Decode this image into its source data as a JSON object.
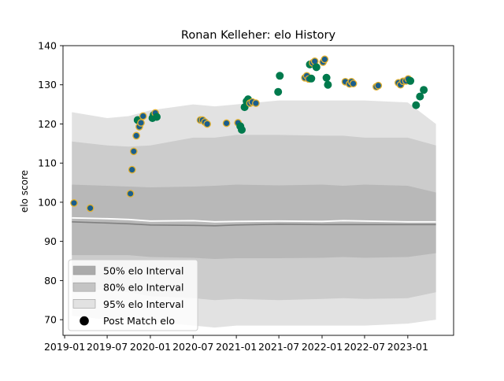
{
  "chart_data": {
    "type": "scatter",
    "title": "Ronan Kelleher: elo History",
    "xlabel": "",
    "ylabel": "elo score",
    "xlim": [
      "2018-12-25",
      "2023-07-15"
    ],
    "ylim": [
      66,
      140
    ],
    "x_ticks": [
      {
        "date": "2019-01-01",
        "label": "2019-01"
      },
      {
        "date": "2019-07-01",
        "label": "2019-07"
      },
      {
        "date": "2020-01-01",
        "label": "2020-01"
      },
      {
        "date": "2020-07-01",
        "label": "2020-07"
      },
      {
        "date": "2021-01-01",
        "label": "2021-01"
      },
      {
        "date": "2021-07-01",
        "label": "2021-07"
      },
      {
        "date": "2022-01-01",
        "label": "2022-01"
      },
      {
        "date": "2022-07-01",
        "label": "2022-07"
      },
      {
        "date": "2023-01-01",
        "label": "2023-01"
      }
    ],
    "y_ticks": [
      70,
      80,
      90,
      100,
      110,
      120,
      130,
      140
    ],
    "legend_position": "lower-left",
    "legend": [
      {
        "label": "50% elo Interval",
        "kind": "band",
        "color": "#aaaaaa"
      },
      {
        "label": "80% elo Interval",
        "kind": "band",
        "color": "#c4c4c4"
      },
      {
        "label": "95% elo Interval",
        "kind": "band",
        "color": "#e2e2e2"
      },
      {
        "label": "Post Match elo",
        "kind": "marker",
        "color": "#000000"
      }
    ],
    "colors": {
      "band95": "#e2e2e2",
      "band80": "#cccccc",
      "band50": "#b8b8b8",
      "mean_line": "#ffffff",
      "median_line": "#808080",
      "point_green": "#007a4d",
      "point_blue": "#1a5e8c",
      "point_edge_gold": "#e0b030"
    },
    "intervals": {
      "dates": [
        "2019-02-01",
        "2019-07-01",
        "2019-10-01",
        "2020-01-01",
        "2020-07-01",
        "2020-10-01",
        "2021-01-01",
        "2021-07-01",
        "2022-01-01",
        "2022-04-01",
        "2022-07-01",
        "2023-01-01",
        "2023-05-01"
      ],
      "mean": [
        96.0,
        95.8,
        95.6,
        95.2,
        95.3,
        95.0,
        95.1,
        95.2,
        95.1,
        95.3,
        95.2,
        95.0,
        95.0
      ],
      "median": [
        95.0,
        94.7,
        94.5,
        94.2,
        94.1,
        94.0,
        94.2,
        94.4,
        94.3,
        94.3,
        94.3,
        94.3,
        94.3
      ],
      "p50": [
        [
          86.5,
          104.5
        ],
        [
          86.5,
          104.2
        ],
        [
          86.5,
          104.0
        ],
        [
          86.0,
          103.8
        ],
        [
          85.8,
          104.0
        ],
        [
          85.5,
          104.2
        ],
        [
          85.7,
          104.5
        ],
        [
          85.7,
          104.3
        ],
        [
          85.8,
          104.5
        ],
        [
          86.0,
          104.2
        ],
        [
          85.8,
          104.5
        ],
        [
          86.0,
          104.2
        ],
        [
          87.0,
          102.5
        ]
      ],
      "p80": [
        [
          78.0,
          115.5
        ],
        [
          77.5,
          114.5
        ],
        [
          77.0,
          114.2
        ],
        [
          76.0,
          114.5
        ],
        [
          75.5,
          116.5
        ],
        [
          75.0,
          116.5
        ],
        [
          75.3,
          117.2
        ],
        [
          75.0,
          117.2
        ],
        [
          75.3,
          117.0
        ],
        [
          75.5,
          117.0
        ],
        [
          75.3,
          116.5
        ],
        [
          75.5,
          116.5
        ],
        [
          77.0,
          114.5
        ]
      ],
      "p95": [
        [
          71.0,
          123.0
        ],
        [
          70.0,
          121.5
        ],
        [
          70.0,
          122.0
        ],
        [
          69.5,
          123.5
        ],
        [
          68.5,
          125.0
        ],
        [
          68.0,
          124.5
        ],
        [
          68.5,
          125.0
        ],
        [
          68.5,
          126.0
        ],
        [
          68.5,
          126.0
        ],
        [
          68.5,
          126.0
        ],
        [
          68.5,
          126.0
        ],
        [
          69.0,
          125.5
        ],
        [
          70.0,
          120.0
        ]
      ]
    },
    "series": [
      {
        "name": "Post Match elo",
        "points": [
          {
            "date": "2019-02-10",
            "y": 99.8,
            "color": "blue"
          },
          {
            "date": "2019-04-20",
            "y": 98.5,
            "color": "blue"
          },
          {
            "date": "2019-10-08",
            "y": 102.2,
            "color": "blue"
          },
          {
            "date": "2019-10-15",
            "y": 108.3,
            "color": "blue"
          },
          {
            "date": "2019-10-22",
            "y": 113.0,
            "color": "blue"
          },
          {
            "date": "2019-11-02",
            "y": 117.0,
            "color": "blue"
          },
          {
            "date": "2019-11-08",
            "y": 121.0,
            "color": "green"
          },
          {
            "date": "2019-11-15",
            "y": 119.3,
            "color": "blue"
          },
          {
            "date": "2019-11-22",
            "y": 120.3,
            "color": "blue"
          },
          {
            "date": "2019-12-01",
            "y": 122.0,
            "color": "blue"
          },
          {
            "date": "2020-01-10",
            "y": 121.5,
            "color": "green"
          },
          {
            "date": "2020-01-15",
            "y": 122.3,
            "color": "green"
          },
          {
            "date": "2020-01-22",
            "y": 122.8,
            "color": "blue"
          },
          {
            "date": "2020-01-28",
            "y": 121.8,
            "color": "green"
          },
          {
            "date": "2020-08-01",
            "y": 121.0,
            "color": "blue"
          },
          {
            "date": "2020-08-10",
            "y": 121.0,
            "color": "blue"
          },
          {
            "date": "2020-08-20",
            "y": 120.5,
            "color": "blue"
          },
          {
            "date": "2020-08-30",
            "y": 120.0,
            "color": "blue"
          },
          {
            "date": "2020-11-20",
            "y": 120.2,
            "color": "blue"
          },
          {
            "date": "2021-01-08",
            "y": 120.3,
            "color": "blue"
          },
          {
            "date": "2021-01-18",
            "y": 119.4,
            "color": "green"
          },
          {
            "date": "2021-01-24",
            "y": 118.5,
            "color": "green"
          },
          {
            "date": "2021-02-05",
            "y": 124.3,
            "color": "green"
          },
          {
            "date": "2021-02-14",
            "y": 125.8,
            "color": "green"
          },
          {
            "date": "2021-02-20",
            "y": 126.3,
            "color": "green"
          },
          {
            "date": "2021-02-28",
            "y": 125.3,
            "color": "blue"
          },
          {
            "date": "2021-03-10",
            "y": 125.6,
            "color": "blue"
          },
          {
            "date": "2021-03-25",
            "y": 125.3,
            "color": "blue"
          },
          {
            "date": "2021-06-28",
            "y": 128.2,
            "color": "green"
          },
          {
            "date": "2021-07-05",
            "y": 132.3,
            "color": "green"
          },
          {
            "date": "2021-10-20",
            "y": 131.8,
            "color": "blue"
          },
          {
            "date": "2021-10-28",
            "y": 132.3,
            "color": "blue"
          },
          {
            "date": "2021-11-05",
            "y": 131.5,
            "color": "blue"
          },
          {
            "date": "2021-11-10",
            "y": 135.2,
            "color": "green"
          },
          {
            "date": "2021-11-16",
            "y": 131.6,
            "color": "green"
          },
          {
            "date": "2021-11-22",
            "y": 135.6,
            "color": "blue"
          },
          {
            "date": "2021-12-01",
            "y": 136.0,
            "color": "blue"
          },
          {
            "date": "2021-12-08",
            "y": 134.5,
            "color": "green"
          },
          {
            "date": "2022-01-05",
            "y": 135.8,
            "color": "blue"
          },
          {
            "date": "2022-01-12",
            "y": 136.5,
            "color": "blue"
          },
          {
            "date": "2022-01-20",
            "y": 131.8,
            "color": "green"
          },
          {
            "date": "2022-01-26",
            "y": 130.0,
            "color": "green"
          },
          {
            "date": "2022-04-10",
            "y": 130.8,
            "color": "blue"
          },
          {
            "date": "2022-04-28",
            "y": 130.2,
            "color": "blue"
          },
          {
            "date": "2022-05-06",
            "y": 130.8,
            "color": "blue"
          },
          {
            "date": "2022-05-14",
            "y": 130.3,
            "color": "blue"
          },
          {
            "date": "2022-08-20",
            "y": 129.5,
            "color": "blue"
          },
          {
            "date": "2022-08-28",
            "y": 129.8,
            "color": "blue"
          },
          {
            "date": "2022-11-22",
            "y": 130.5,
            "color": "blue"
          },
          {
            "date": "2022-12-01",
            "y": 130.0,
            "color": "blue"
          },
          {
            "date": "2022-12-12",
            "y": 130.9,
            "color": "blue"
          },
          {
            "date": "2022-12-24",
            "y": 131.0,
            "color": "blue"
          },
          {
            "date": "2023-01-03",
            "y": 131.5,
            "color": "blue"
          },
          {
            "date": "2023-01-12",
            "y": 131.0,
            "color": "green"
          },
          {
            "date": "2023-02-05",
            "y": 124.8,
            "color": "green"
          },
          {
            "date": "2023-02-22",
            "y": 127.0,
            "color": "green"
          },
          {
            "date": "2023-03-10",
            "y": 128.7,
            "color": "green"
          }
        ]
      }
    ]
  }
}
